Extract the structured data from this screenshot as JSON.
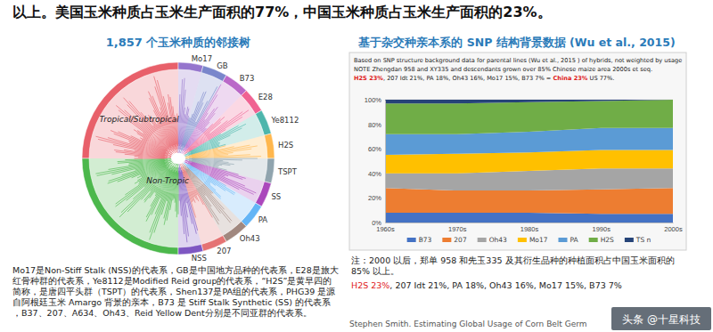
{
  "header": {
    "text": "以上。美国玉米种质占玉米生产面积的77%，中国玉米种质占玉米生产面积的23%。"
  },
  "tree_panel": {
    "title": "1,857 个玉米种质的邻接树",
    "labels": [
      "Tropical/Subtropical",
      "Non-Tropic",
      "Mo17",
      "GB",
      "B73",
      "E28",
      "Ye8112",
      "H2S",
      "TSPT",
      "SS",
      "PA",
      "Oh43",
      "207",
      "NSS"
    ],
    "note": "Mo17是Non-Stiff Stalk (NSS)的代表系，GB是中国地方品种的代表系，E28是旅大红骨种群的代表系，Ye8112是Modified Reid group的代表系，“H2S”是黄早四的简称，是唐四平头群（TSPT）的代表系，Shen137是PA组的代表系，PHG39 是源自阿根廷玉米 Amargo 背景的亲本，B73 是 Stiff Stalk Synthetic (SS) 的代表系，B37、207、A634、Oh43、Reid Yellow Dent分别是不同亚群的代表系。"
  },
  "chart_data": {
    "type": "area",
    "title": "基于杂交种亲本系的 SNP 结构背景数据 (Wu et al., 2015)",
    "annotations": [
      "Based on SNP structure background data for parental lines (Wu et al., 2015 ) of hybrids, not weighted by usage",
      "NOTE Zhengdan 958 and XY335 and descendants grown over 85% Chinese maize area 2000s et seq.",
      [
        "H2S 23%",
        ", 207 Idt 21%, PA 18%, Oh43 16%, Mo17 15%, B73 7% = ",
        "China 23%",
        " US 77%."
      ]
    ],
    "categories": [
      "1960s",
      "1970s",
      "1980s",
      "1990s",
      "2000s"
    ],
    "series": [
      {
        "name": "B73",
        "color": "#4472c4",
        "values": [
          8,
          8,
          8,
          7,
          7
        ]
      },
      {
        "name": "207",
        "color": "#ed7d31",
        "values": [
          20,
          18,
          18,
          20,
          21
        ]
      },
      {
        "name": "Oh43",
        "color": "#a5a5a5",
        "values": [
          12,
          14,
          16,
          17,
          16
        ]
      },
      {
        "name": "Mo17",
        "color": "#ffc000",
        "values": [
          15,
          16,
          15,
          15,
          15
        ]
      },
      {
        "name": "PA",
        "color": "#5b9bd5",
        "values": [
          17,
          16,
          17,
          18,
          18
        ]
      },
      {
        "name": "H2S",
        "color": "#70ad47",
        "values": [
          25,
          25,
          24,
          22,
          23
        ]
      },
      {
        "name": "TS n",
        "color": "#264478",
        "values": [
          3,
          3,
          2,
          1,
          0
        ]
      }
    ],
    "stacked": true,
    "ylim": [
      0,
      100
    ],
    "yticks": [
      {
        "value": 0,
        "label": "0%"
      },
      {
        "value": 20,
        "label": "20%"
      },
      {
        "value": 40,
        "label": "40%"
      },
      {
        "value": 60,
        "label": "60%"
      },
      {
        "value": 80,
        "label": "80%"
      },
      {
        "value": 100,
        "label": "100%"
      }
    ],
    "grid": true,
    "legend": "bottom"
  },
  "chart_note": {
    "text": "注：2000 以后，郑单 958 和先玉335 及其衍生品种的种植面积占中国玉米面积的85% 以上。",
    "runs": [
      "H2S 23%",
      ", 207 Idt 21%, PA 18%, Oh43 16%, Mo17 15%, B73 7%"
    ]
  },
  "footer": {
    "citation": "Stephen Smith. Estimating Global Usage of Corn Belt Germ",
    "watermark": "头条 @十星科技"
  }
}
